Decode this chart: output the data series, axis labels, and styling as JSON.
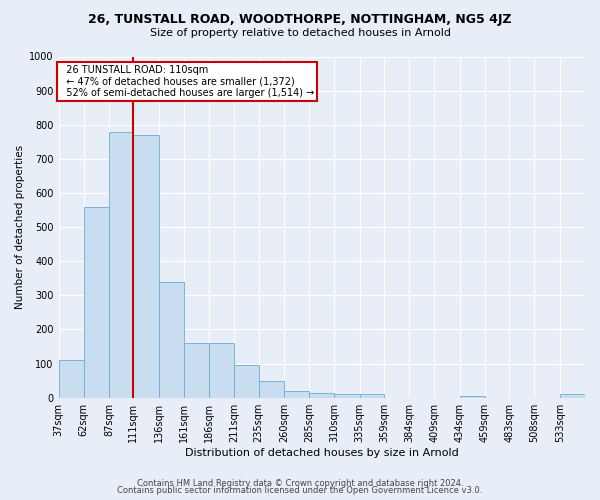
{
  "title1": "26, TUNSTALL ROAD, WOODTHORPE, NOTTINGHAM, NG5 4JZ",
  "title2": "Size of property relative to detached houses in Arnold",
  "xlabel": "Distribution of detached houses by size in Arnold",
  "ylabel": "Number of detached properties",
  "bar_color": "#c9ddf0",
  "bar_edge_color": "#6aaed6",
  "annotation_text": "  26 TUNSTALL ROAD: 110sqm\n  ← 47% of detached houses are smaller (1,372)\n  52% of semi-detached houses are larger (1,514) →",
  "vline_x": 111,
  "categories": [
    "37sqm",
    "62sqm",
    "87sqm",
    "111sqm",
    "136sqm",
    "161sqm",
    "186sqm",
    "211sqm",
    "235sqm",
    "260sqm",
    "285sqm",
    "310sqm",
    "335sqm",
    "359sqm",
    "384sqm",
    "409sqm",
    "434sqm",
    "459sqm",
    "483sqm",
    "508sqm",
    "533sqm"
  ],
  "bin_edges": [
    37,
    62,
    87,
    111,
    136,
    161,
    186,
    211,
    235,
    260,
    285,
    310,
    335,
    359,
    384,
    409,
    434,
    459,
    483,
    508,
    533,
    558
  ],
  "values": [
    110,
    560,
    780,
    770,
    340,
    160,
    160,
    95,
    50,
    20,
    15,
    12,
    12,
    0,
    0,
    0,
    5,
    0,
    0,
    0,
    10
  ],
  "ylim": [
    0,
    1000
  ],
  "yticks": [
    0,
    100,
    200,
    300,
    400,
    500,
    600,
    700,
    800,
    900,
    1000
  ],
  "footer1": "Contains HM Land Registry data © Crown copyright and database right 2024.",
  "footer2": "Contains public sector information licensed under the Open Government Licence v3.0.",
  "background_color": "#e8eef8",
  "plot_bg_color": "#e8eef8",
  "grid_color": "#ffffff",
  "annotation_box_facecolor": "#ffffff",
  "annotation_box_edge": "#cc0000",
  "vline_color": "#cc0000",
  "title1_fontsize": 9,
  "title2_fontsize": 8,
  "ylabel_fontsize": 7.5,
  "xlabel_fontsize": 8,
  "tick_fontsize": 7,
  "footer_fontsize": 6
}
